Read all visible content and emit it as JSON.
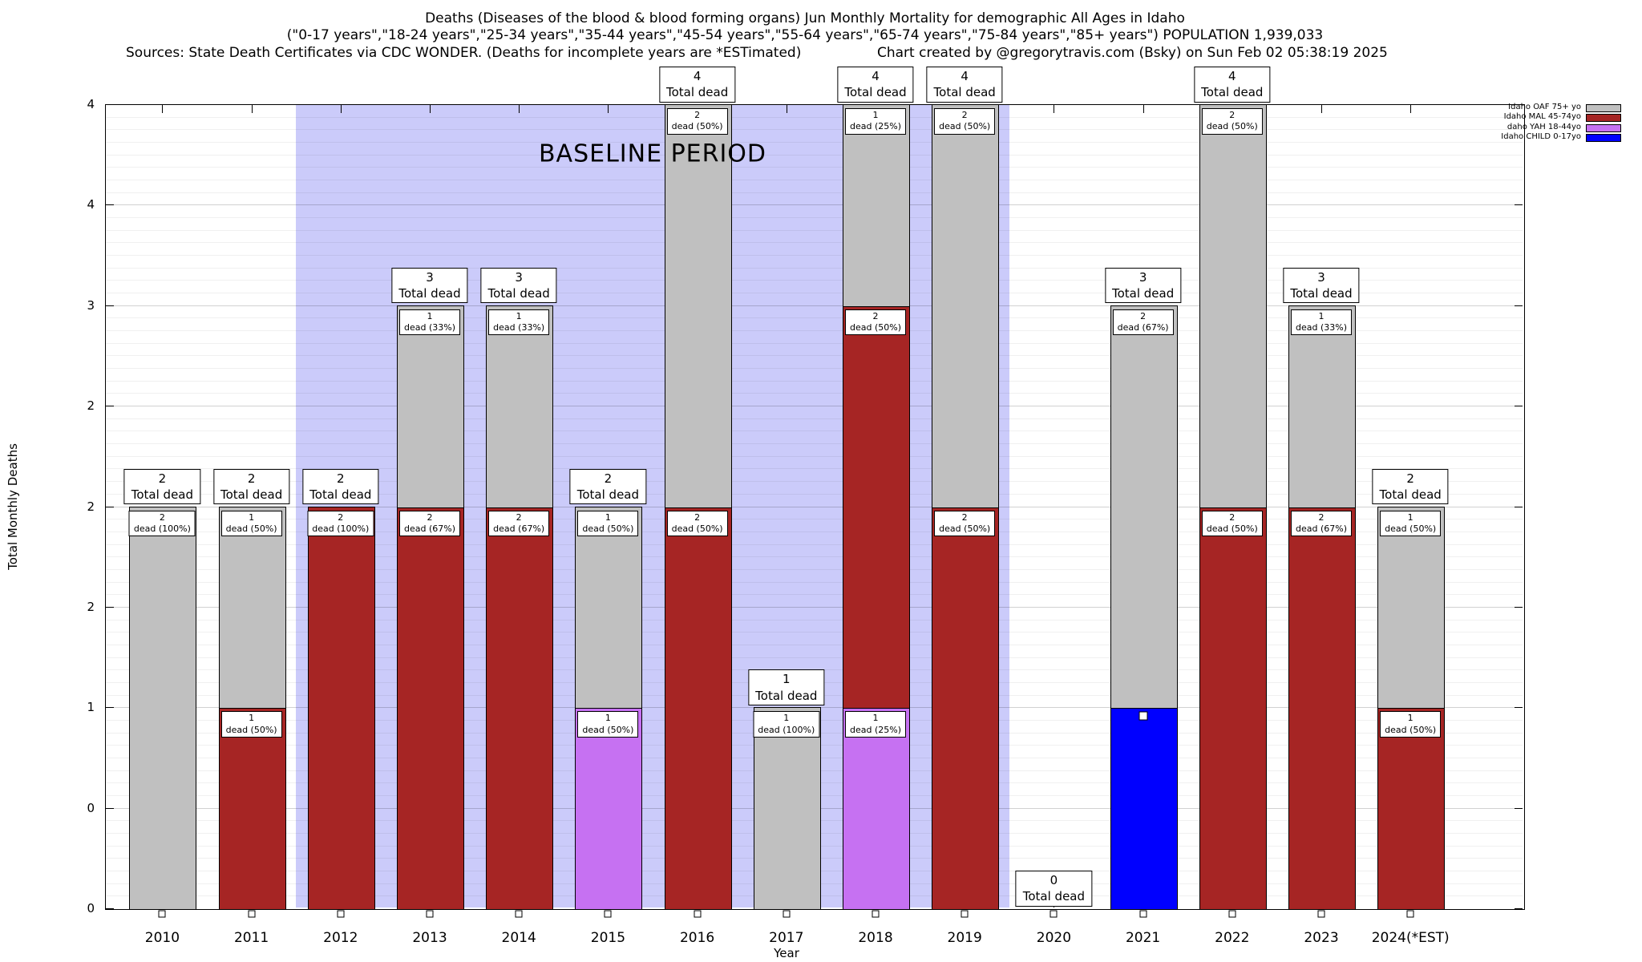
{
  "titles": {
    "line1": "Deaths (Diseases of the blood & blood forming organs) Jun Monthly Mortality for demographic All Ages in Idaho",
    "line2": "(\"0-17 years\",\"18-24 years\",\"25-34 years\",\"35-44 years\",\"45-54 years\",\"55-64 years\",\"65-74 years\",\"75-84 years\",\"85+ years\") POPULATION 1,939,033",
    "line3_left": "Sources: State Death Certificates via CDC WONDER. (Deaths for incomplete years are *ESTimated)",
    "line3_right": "Chart created by @gregorytravis.com (Bsky) on Sun Feb 02 05:38:19 2025"
  },
  "chart_data": {
    "type": "bar",
    "stacked": true,
    "title": "Deaths (Diseases of the blood & blood forming organs) Jun Monthly Mortality for demographic All Ages in Idaho",
    "xlabel": "Year",
    "ylabel": "Total Monthly Deaths",
    "ylim": [
      0,
      4
    ],
    "ytick_step": 0.5,
    "ytick_labels_top_to_bottom": [
      "4",
      "4",
      "3",
      "2",
      "2",
      "2",
      "1",
      "0",
      "0"
    ],
    "grid": "horizontal-minor",
    "legend_position": "top-right-outside",
    "total_box_label": "Total dead",
    "baseline_band": {
      "label": "BASELINE PERIOD",
      "from_category": "2012",
      "to_category": "2019",
      "color": "#cbcbfa"
    },
    "groups": [
      {
        "key": "OAF",
        "legend_label": "Idaho OAF 75+ yo",
        "color": "#c0c0c0"
      },
      {
        "key": "MAL",
        "legend_label": "Idaho MAL 45-74yo",
        "color": "#a62524"
      },
      {
        "key": "YAH",
        "legend_label": "daho YAH 18-44yo",
        "color": "#c671f2"
      },
      {
        "key": "CHILD",
        "legend_label": "Idaho CHILD 0-17yo",
        "color": "#0000ff"
      }
    ],
    "categories": [
      "2010",
      "2011",
      "2012",
      "2013",
      "2014",
      "2015",
      "2016",
      "2017",
      "2018",
      "2019",
      "2020",
      "2021",
      "2022",
      "2023",
      "2024(*EST)"
    ],
    "bars": [
      {
        "category": "2010",
        "total": 2,
        "segments": [
          {
            "group": "OAF",
            "value": 2,
            "count": "2",
            "pct": "dead (100%)"
          }
        ]
      },
      {
        "category": "2011",
        "total": 2,
        "segments": [
          {
            "group": "MAL",
            "value": 1,
            "count": "1",
            "pct": "dead (50%)"
          },
          {
            "group": "OAF",
            "value": 1,
            "count": "1",
            "pct": "dead (50%)"
          }
        ]
      },
      {
        "category": "2012",
        "total": 2,
        "segments": [
          {
            "group": "MAL",
            "value": 2,
            "count": "2",
            "pct": "dead (100%)"
          }
        ]
      },
      {
        "category": "2013",
        "total": 3,
        "segments": [
          {
            "group": "MAL",
            "value": 2,
            "count": "2",
            "pct": "dead (67%)"
          },
          {
            "group": "OAF",
            "value": 1,
            "count": "1",
            "pct": "dead (33%)"
          }
        ]
      },
      {
        "category": "2014",
        "total": 3,
        "segments": [
          {
            "group": "MAL",
            "value": 2,
            "count": "2",
            "pct": "dead (67%)"
          },
          {
            "group": "OAF",
            "value": 1,
            "count": "1",
            "pct": "dead (33%)"
          }
        ]
      },
      {
        "category": "2015",
        "total": 2,
        "segments": [
          {
            "group": "YAH",
            "value": 1,
            "count": "1",
            "pct": "dead (50%)"
          },
          {
            "group": "OAF",
            "value": 1,
            "count": "1",
            "pct": "dead (50%)"
          }
        ]
      },
      {
        "category": "2016",
        "total": 4,
        "segments": [
          {
            "group": "MAL",
            "value": 2,
            "count": "2",
            "pct": "dead (50%)"
          },
          {
            "group": "OAF",
            "value": 2,
            "count": "2",
            "pct": "dead (50%)"
          }
        ]
      },
      {
        "category": "2017",
        "total": 1,
        "segments": [
          {
            "group": "OAF",
            "value": 1,
            "count": "1",
            "pct": "dead (100%)"
          }
        ]
      },
      {
        "category": "2018",
        "total": 4,
        "segments": [
          {
            "group": "YAH",
            "value": 1,
            "count": "1",
            "pct": "dead (25%)"
          },
          {
            "group": "MAL",
            "value": 2,
            "count": "2",
            "pct": "dead (50%)"
          },
          {
            "group": "OAF",
            "value": 1,
            "count": "1",
            "pct": "dead (25%)"
          }
        ]
      },
      {
        "category": "2019",
        "total": 4,
        "segments": [
          {
            "group": "MAL",
            "value": 2,
            "count": "2",
            "pct": "dead (50%)"
          },
          {
            "group": "OAF",
            "value": 2,
            "count": "2",
            "pct": "dead (50%)"
          }
        ]
      },
      {
        "category": "2020",
        "total": 0,
        "segments": []
      },
      {
        "category": "2021",
        "total": 3,
        "segments": [
          {
            "group": "CHILD",
            "value": 1,
            "count": "",
            "pct": "",
            "marker": true
          },
          {
            "group": "OAF",
            "value": 2,
            "count": "2",
            "pct": "dead (67%)"
          }
        ]
      },
      {
        "category": "2022",
        "total": 4,
        "segments": [
          {
            "group": "MAL",
            "value": 2,
            "count": "2",
            "pct": "dead (50%)"
          },
          {
            "group": "OAF",
            "value": 2,
            "count": "2",
            "pct": "dead (50%)"
          }
        ]
      },
      {
        "category": "2023",
        "total": 3,
        "segments": [
          {
            "group": "MAL",
            "value": 2,
            "count": "2",
            "pct": "dead (67%)"
          },
          {
            "group": "OAF",
            "value": 1,
            "count": "1",
            "pct": "dead (33%)"
          }
        ]
      },
      {
        "category": "2024(*EST)",
        "total": 2,
        "segments": [
          {
            "group": "MAL",
            "value": 1,
            "count": "1",
            "pct": "dead (50%)"
          },
          {
            "group": "OAF",
            "value": 1,
            "count": "1",
            "pct": "dead (50%)"
          }
        ]
      }
    ]
  }
}
